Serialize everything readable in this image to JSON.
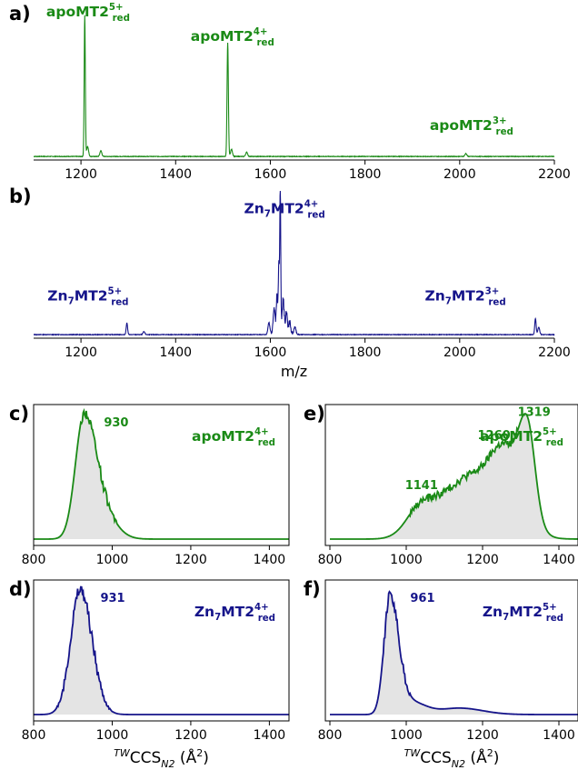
{
  "colors": {
    "green": "#1a8a16",
    "navy": "#15148a",
    "fill": "#e4e4e4",
    "axis": "#000000"
  },
  "chart_data": [
    {
      "id": "a",
      "type": "line",
      "panel_label": "a)",
      "color": "green",
      "xlim": [
        1100,
        2200
      ],
      "ylim": [
        0,
        1
      ],
      "xticks": [
        1200,
        1400,
        1600,
        1800,
        2000,
        2200
      ],
      "xlabel": "",
      "baseline": 0.01,
      "peaks": [
        {
          "x": 1208,
          "h": 0.98,
          "w": 1.2
        },
        {
          "x": 1214,
          "h": 0.07,
          "w": 2
        },
        {
          "x": 1242,
          "h": 0.04,
          "w": 2
        },
        {
          "x": 1510,
          "h": 0.79,
          "w": 1.4
        },
        {
          "x": 1518,
          "h": 0.05,
          "w": 2
        },
        {
          "x": 1550,
          "h": 0.03,
          "w": 2
        },
        {
          "x": 2013,
          "h": 0.02,
          "w": 2
        }
      ],
      "annotations": [
        {
          "base": "apoMT2",
          "sup": "5+",
          "sub": "red",
          "x": 1215,
          "y": 1.0
        },
        {
          "base": "apoMT2",
          "sup": "4+",
          "sub": "red",
          "x": 1520,
          "y": 0.83
        },
        {
          "base": "apoMT2",
          "sup": "3+",
          "sub": "red",
          "x": 2025,
          "y": 0.21
        }
      ]
    },
    {
      "id": "b",
      "type": "line",
      "panel_label": "b)",
      "color": "navy",
      "xlim": [
        1100,
        2200
      ],
      "ylim": [
        0,
        1
      ],
      "xticks": [
        1200,
        1400,
        1600,
        1800,
        2000,
        2200
      ],
      "xlabel": "m/z",
      "baseline": 0.01,
      "peaks": [
        {
          "x": 1297,
          "h": 0.08,
          "w": 1.5
        },
        {
          "x": 1333,
          "h": 0.02,
          "w": 2
        },
        {
          "x": 1597,
          "h": 0.08,
          "w": 2
        },
        {
          "x": 1608,
          "h": 0.16,
          "w": 2
        },
        {
          "x": 1614,
          "h": 0.24,
          "w": 1.5
        },
        {
          "x": 1618,
          "h": 0.45,
          "w": 1.2
        },
        {
          "x": 1621,
          "h": 0.98,
          "w": 1.0
        },
        {
          "x": 1627,
          "h": 0.21,
          "w": 2
        },
        {
          "x": 1634,
          "h": 0.13,
          "w": 2
        },
        {
          "x": 1641,
          "h": 0.07,
          "w": 2
        },
        {
          "x": 1652,
          "h": 0.05,
          "w": 2
        },
        {
          "x": 2160,
          "h": 0.11,
          "w": 1.5
        },
        {
          "x": 2167,
          "h": 0.05,
          "w": 2
        }
      ],
      "annotations": [
        {
          "base": "Zn",
          "base_sub": "7",
          "rest": "MT2",
          "sup": "5+",
          "sub": "red",
          "x": 1215,
          "y": 0.26
        },
        {
          "base": "Zn",
          "base_sub": "7",
          "rest": "MT2",
          "sup": "4+",
          "sub": "red",
          "x": 1630,
          "y": 0.86
        },
        {
          "base": "Zn",
          "base_sub": "7",
          "rest": "MT2",
          "sup": "3+",
          "sub": "red",
          "x": 2012,
          "y": 0.26
        }
      ]
    },
    {
      "id": "c",
      "type": "area",
      "panel_label": "c)",
      "color": "green",
      "xlim": [
        800,
        1450
      ],
      "ylim": [
        0,
        1
      ],
      "xticks": [
        800,
        1000,
        1200,
        1400
      ],
      "xlabel": "",
      "peak_label": "930",
      "components": [
        {
          "mu": 928,
          "sigma_left": 22,
          "sigma_right": 30,
          "amp": 0.93
        },
        {
          "mu": 975,
          "sigma_left": 30,
          "sigma_right": 35,
          "amp": 0.18
        }
      ],
      "noise_range": [
        920,
        1010
      ],
      "noise_amp": 0.04,
      "annotation": {
        "base": "apoMT2",
        "sup": "4+",
        "sub": "red"
      }
    },
    {
      "id": "d",
      "type": "area",
      "panel_label": "d)",
      "color": "navy",
      "xlim": [
        800,
        1450
      ],
      "ylim": [
        0,
        1
      ],
      "xticks": [
        800,
        1000,
        1200,
        1400
      ],
      "xlabel": "TWCCSN2 (Å2)",
      "peak_label": "931",
      "components": [
        {
          "mu": 919,
          "sigma_left": 25,
          "sigma_right": 30,
          "amp": 0.97
        }
      ],
      "noise_range": [
        860,
        1000
      ],
      "noise_amp": 0.05,
      "annotation": {
        "base": "Zn",
        "base_sub": "7",
        "rest": "MT2",
        "sup": "4+",
        "sub": "red"
      }
    },
    {
      "id": "e",
      "type": "area",
      "panel_label": "e)",
      "color": "green",
      "xlim": [
        800,
        1450
      ],
      "ylim": [
        0,
        1
      ],
      "xticks": [
        800,
        1000,
        1200,
        1400
      ],
      "xlabel": "",
      "peak_labels": [
        {
          "text": "1141",
          "x": 1040,
          "y": 0.39
        },
        {
          "text": "1260",
          "x": 1230,
          "y": 0.78
        },
        {
          "text": "1319",
          "x": 1335,
          "y": 0.96
        }
      ],
      "components": [
        {
          "mu": 1045,
          "sigma_left": 40,
          "sigma_right": 70,
          "amp": 0.28
        },
        {
          "mu": 1175,
          "sigma_left": 55,
          "sigma_right": 70,
          "amp": 0.42
        },
        {
          "mu": 1262,
          "sigma_left": 40,
          "sigma_right": 45,
          "amp": 0.52
        },
        {
          "mu": 1318,
          "sigma_left": 22,
          "sigma_right": 20,
          "amp": 0.66
        }
      ],
      "noise_range": [
        1010,
        1290
      ],
      "noise_amp": 0.03,
      "annotation": {
        "base": "apoMT2",
        "sup": "5+",
        "sub": "red"
      }
    },
    {
      "id": "f",
      "type": "area",
      "panel_label": "f)",
      "color": "navy",
      "xlim": [
        800,
        1450
      ],
      "ylim": [
        0,
        1
      ],
      "xticks": [
        800,
        1000,
        1200,
        1400
      ],
      "xlabel": "TWCCSN2 (Å2)",
      "peak_label": "961",
      "components": [
        {
          "mu": 958,
          "sigma_left": 16,
          "sigma_right": 22,
          "amp": 0.93
        },
        {
          "mu": 1010,
          "sigma_left": 25,
          "sigma_right": 40,
          "amp": 0.1
        },
        {
          "mu": 1140,
          "sigma_left": 50,
          "sigma_right": 60,
          "amp": 0.05
        }
      ],
      "noise_range": [
        940,
        1010
      ],
      "noise_amp": 0.04,
      "annotation": {
        "base": "Zn",
        "base_sub": "7",
        "rest": "MT2",
        "sup": "5+",
        "sub": "red"
      }
    }
  ]
}
